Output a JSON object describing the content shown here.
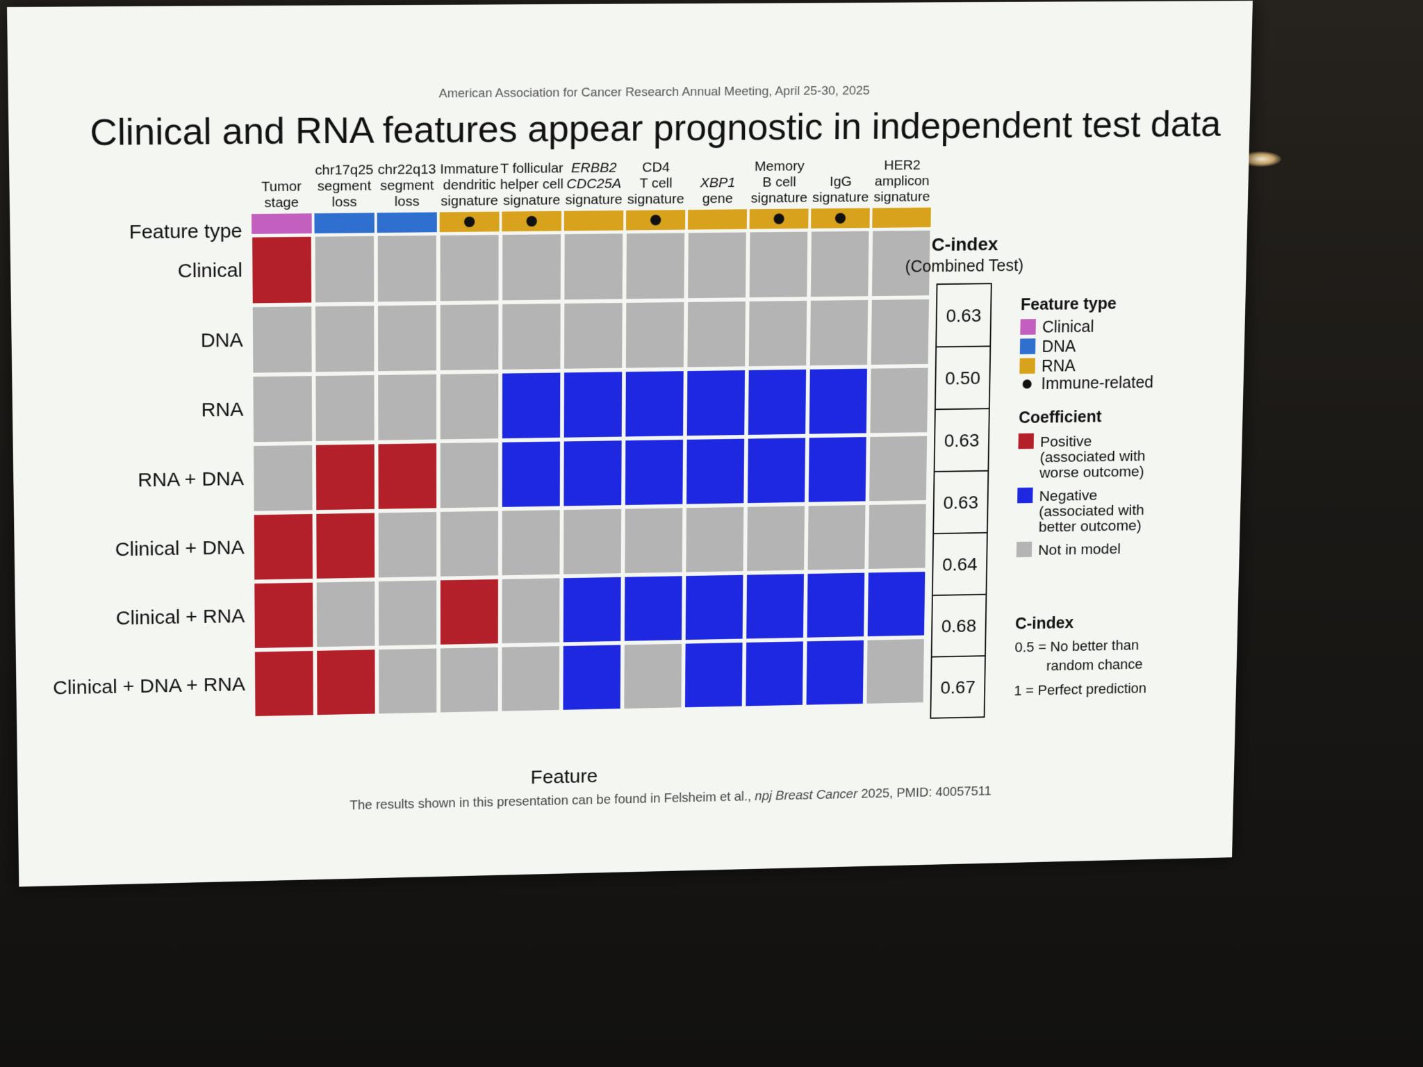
{
  "header": {
    "conference": "American Association for Cancer Research Annual Meeting, April 25-30, 2025",
    "title": "Clinical and RNA features appear prognostic in independent test data"
  },
  "footer": {
    "citation_prefix": "The results shown in this presentation can be found in Felsheim et al., ",
    "citation_journal": "npj Breast Cancer",
    "citation_suffix": " 2025, PMID: 40057511"
  },
  "legend": {
    "feature_type_title": "Feature type",
    "feature_types": [
      {
        "label": "Clinical",
        "color": "#c25fbf"
      },
      {
        "label": "DNA",
        "color": "#2f6fd0"
      },
      {
        "label": "RNA",
        "color": "#d9a21c"
      }
    ],
    "immune_label": "Immune-related",
    "coefficient_title": "Coefficient",
    "coefficients": [
      {
        "lines": [
          "Positive",
          "(associated with",
          "worse outcome)"
        ],
        "color": "#b3202a"
      },
      {
        "lines": [
          "Negative",
          "(associated with",
          "better outcome)"
        ],
        "color": "#1e28e0"
      },
      {
        "lines": [
          "Not in model"
        ],
        "color": "#b4b4b4"
      }
    ],
    "cindex_title": "C-index",
    "cindex_notes": [
      [
        "0.5 = No better than",
        "random chance"
      ],
      [
        "1 = Perfect prediction"
      ]
    ]
  },
  "chart_data": {
    "type": "heatmap",
    "xlabel": "Feature",
    "feature_type_row_label": "Feature type",
    "features": [
      {
        "lines": [
          "Tumor",
          "stage"
        ],
        "italic": false,
        "type": "Clinical",
        "immune": false
      },
      {
        "lines": [
          "chr17q25",
          "segment",
          "loss"
        ],
        "italic": false,
        "type": "DNA",
        "immune": false
      },
      {
        "lines": [
          "chr22q13",
          "segment",
          "loss"
        ],
        "italic": false,
        "type": "DNA",
        "immune": false
      },
      {
        "lines": [
          "Immature",
          "dendritic",
          "signature"
        ],
        "italic": false,
        "type": "RNA",
        "immune": true
      },
      {
        "lines": [
          "T follicular",
          "helper cell",
          "signature"
        ],
        "italic": false,
        "type": "RNA",
        "immune": true
      },
      {
        "lines": [
          "ERBB2",
          "CDC25A",
          "signature"
        ],
        "italic": [
          true,
          true,
          false
        ],
        "type": "RNA",
        "immune": false
      },
      {
        "lines": [
          "CD4",
          "T cell",
          "signature"
        ],
        "italic": false,
        "type": "RNA",
        "immune": true
      },
      {
        "lines": [
          "XBP1",
          "gene"
        ],
        "italic": [
          true,
          false
        ],
        "type": "RNA",
        "immune": false
      },
      {
        "lines": [
          "Memory",
          "B cell",
          "signature"
        ],
        "italic": false,
        "type": "RNA",
        "immune": true
      },
      {
        "lines": [
          "IgG",
          "signature"
        ],
        "italic": false,
        "type": "RNA",
        "immune": true
      },
      {
        "lines": [
          "HER2",
          "amplicon",
          "signature"
        ],
        "italic": false,
        "type": "RNA",
        "immune": false
      }
    ],
    "models": [
      "Clinical",
      "DNA",
      "RNA",
      "RNA + DNA",
      "Clinical + DNA",
      "Clinical + RNA",
      "Clinical + DNA + RNA"
    ],
    "coefficients": [
      [
        "positive",
        "none",
        "none",
        "none",
        "none",
        "none",
        "none",
        "none",
        "none",
        "none",
        "none"
      ],
      [
        "none",
        "none",
        "none",
        "none",
        "none",
        "none",
        "none",
        "none",
        "none",
        "none",
        "none"
      ],
      [
        "none",
        "none",
        "none",
        "none",
        "negative",
        "negative",
        "negative",
        "negative",
        "negative",
        "negative",
        "none"
      ],
      [
        "none",
        "positive",
        "positive",
        "none",
        "negative",
        "negative",
        "negative",
        "negative",
        "negative",
        "negative",
        "none"
      ],
      [
        "positive",
        "positive",
        "none",
        "none",
        "none",
        "none",
        "none",
        "none",
        "none",
        "none",
        "none"
      ],
      [
        "positive",
        "none",
        "none",
        "positive",
        "none",
        "negative",
        "negative",
        "negative",
        "negative",
        "negative",
        "negative"
      ],
      [
        "positive",
        "positive",
        "none",
        "none",
        "none",
        "negative",
        "none",
        "negative",
        "negative",
        "negative",
        "none"
      ]
    ],
    "cindex_title": "C-index",
    "cindex_subtitle": "(Combined Test)",
    "cindex": [
      "0.63",
      "0.50",
      "0.63",
      "0.63",
      "0.64",
      "0.68",
      "0.67"
    ],
    "colors": {
      "positive": "#b3202a",
      "negative": "#1e28e0",
      "none": "#b4b4b4"
    }
  }
}
